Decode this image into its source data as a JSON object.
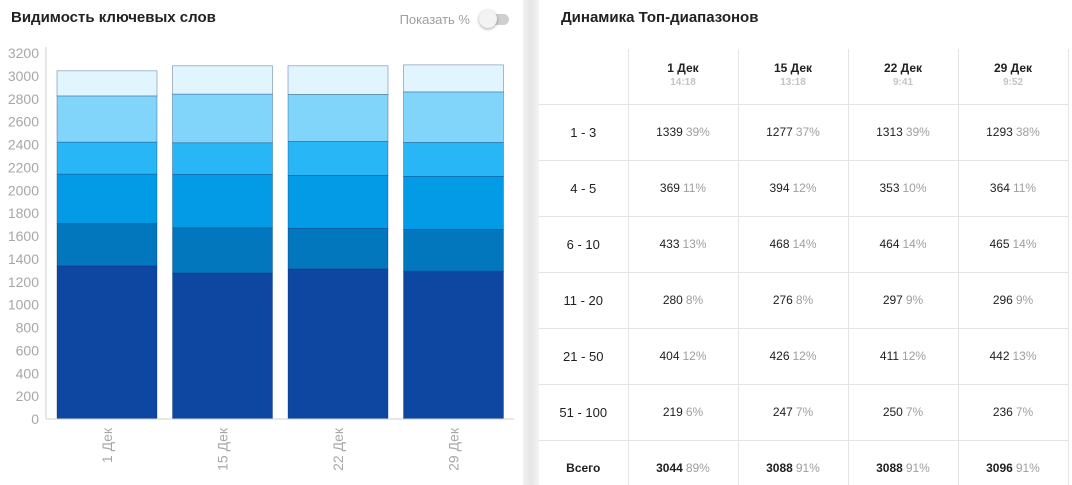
{
  "left_panel": {
    "title": "Видимость ключевых слов",
    "toggle_label": "Показать %",
    "toggle_on": false
  },
  "right_panel": {
    "title": "Динамика Топ-диапазонов",
    "columns": [
      {
        "date": "1 Дек",
        "time": "14:18"
      },
      {
        "date": "15 Дек",
        "time": "13:18"
      },
      {
        "date": "22 Дек",
        "time": "9:41"
      },
      {
        "date": "29 Дек",
        "time": "9:52"
      }
    ],
    "rows": [
      {
        "range": "1 - 3",
        "cells": [
          {
            "count": "1339",
            "pct": "39%"
          },
          {
            "count": "1277",
            "pct": "37%"
          },
          {
            "count": "1313",
            "pct": "39%"
          },
          {
            "count": "1293",
            "pct": "38%"
          }
        ]
      },
      {
        "range": "4 - 5",
        "cells": [
          {
            "count": "369",
            "pct": "11%"
          },
          {
            "count": "394",
            "pct": "12%"
          },
          {
            "count": "353",
            "pct": "10%"
          },
          {
            "count": "364",
            "pct": "11%"
          }
        ]
      },
      {
        "range": "6 - 10",
        "cells": [
          {
            "count": "433",
            "pct": "13%"
          },
          {
            "count": "468",
            "pct": "14%"
          },
          {
            "count": "464",
            "pct": "14%"
          },
          {
            "count": "465",
            "pct": "14%"
          }
        ]
      },
      {
        "range": "11 - 20",
        "cells": [
          {
            "count": "280",
            "pct": "8%"
          },
          {
            "count": "276",
            "pct": "8%"
          },
          {
            "count": "297",
            "pct": "9%"
          },
          {
            "count": "296",
            "pct": "9%"
          }
        ]
      },
      {
        "range": "21 - 50",
        "cells": [
          {
            "count": "404",
            "pct": "12%"
          },
          {
            "count": "426",
            "pct": "12%"
          },
          {
            "count": "411",
            "pct": "12%"
          },
          {
            "count": "442",
            "pct": "13%"
          }
        ]
      },
      {
        "range": "51 - 100",
        "cells": [
          {
            "count": "219",
            "pct": "6%"
          },
          {
            "count": "247",
            "pct": "7%"
          },
          {
            "count": "250",
            "pct": "7%"
          },
          {
            "count": "236",
            "pct": "7%"
          }
        ]
      }
    ],
    "total": {
      "range": "Всего",
      "cells": [
        {
          "count": "3044",
          "pct": "89%"
        },
        {
          "count": "3088",
          "pct": "91%"
        },
        {
          "count": "3088",
          "pct": "91%"
        },
        {
          "count": "3096",
          "pct": "91%"
        }
      ]
    }
  },
  "chart_data": {
    "type": "bar",
    "stacked": true,
    "categories": [
      "1 Дек",
      "15 Дек",
      "22 Дек",
      "29 Дек"
    ],
    "series": [
      {
        "values": [
          1339,
          1277,
          1313,
          1293
        ],
        "color": "#0d47a1"
      },
      {
        "values": [
          369,
          394,
          353,
          364
        ],
        "color": "#0277bd"
      },
      {
        "values": [
          433,
          468,
          464,
          465
        ],
        "color": "#039be5"
      },
      {
        "values": [
          280,
          276,
          297,
          296
        ],
        "color": "#29b6f6"
      },
      {
        "values": [
          404,
          426,
          411,
          442
        ],
        "color": "#81d4fa"
      },
      {
        "values": [
          219,
          247,
          250,
          236
        ],
        "color": "#e1f5fe"
      }
    ],
    "ylim": [
      0,
      3200
    ],
    "yticks": [
      "0",
      "200",
      "400",
      "600",
      "800",
      "1000",
      "1200",
      "1400",
      "1600",
      "1800",
      "2000",
      "2200",
      "2400",
      "2600",
      "2800",
      "3000",
      "3200"
    ],
    "grid": false,
    "legend": "none"
  }
}
